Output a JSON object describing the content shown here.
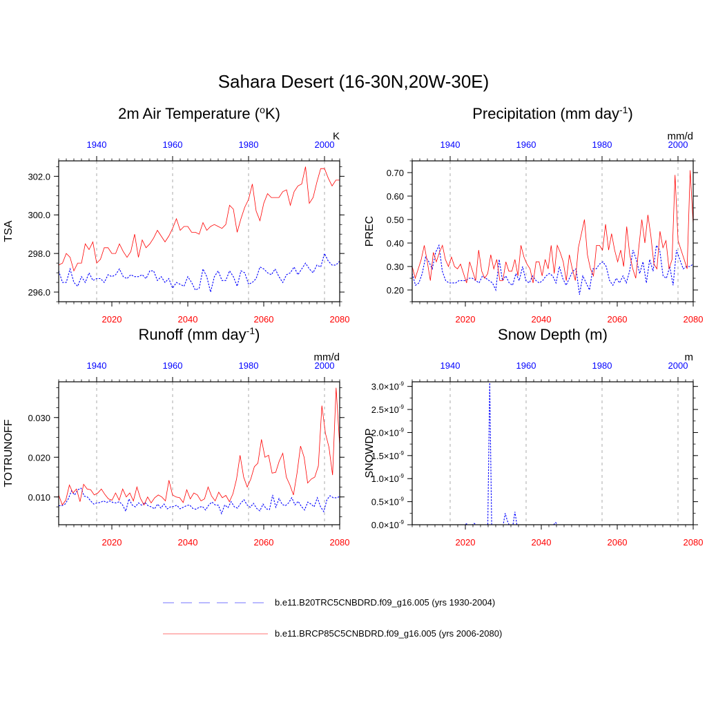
{
  "title": "Sahara Desert (16-30N,20W-30E)",
  "colors": {
    "hist": "#0000ff",
    "future": "#ff0000",
    "top_tick": "#0000ff",
    "bottom_tick": "#ff0000",
    "grid": "#aaaaaa"
  },
  "legend": {
    "hist_label": "b.e11.B20TRC5CNBDRD.f09_g16.005 (yrs 1930-2004)",
    "future_label": "b.e11.BRCP85C5CNBDRD.f09_g16.005 (yrs 2006-2080)"
  },
  "chart_data": [
    {
      "type": "line",
      "title_main": "2m Air Temperature (",
      "title_sup": "o",
      "title_end": "K)",
      "ylabel": "TSA",
      "units": "K",
      "ylim": [
        295.5,
        302.8
      ],
      "yticks": [
        296.0,
        298.0,
        300.0,
        302.0
      ],
      "ytick_labels": [
        "296.0",
        "298.0",
        "300.0",
        "302.0"
      ],
      "yminor": 0.5,
      "xlim_bottom": [
        2006,
        2080
      ],
      "xlim_top": [
        1930,
        2004
      ],
      "bottom_ticks": [
        2020,
        2040,
        2060,
        2080
      ],
      "top_ticks": [
        1940,
        1960,
        1980,
        2000
      ],
      "series": [
        {
          "name": "b.e11.B20TRC5CNBDRD.f09_g16.005 (yrs 1930-2004)",
          "style": "dashed",
          "color": "#0000ff",
          "values": [
            297.1,
            296.5,
            296.5,
            297.2,
            296.5,
            296.3,
            296.8,
            296.5,
            297.0,
            296.6,
            296.7,
            296.7,
            296.5,
            296.9,
            296.8,
            296.9,
            297.2,
            296.8,
            296.7,
            296.9,
            296.8,
            296.8,
            296.9,
            296.7,
            297.1,
            297.1,
            296.6,
            296.8,
            296.5,
            296.7,
            296.2,
            296.5,
            296.4,
            296.3,
            296.8,
            296.5,
            296.1,
            296.2,
            297.2,
            296.8,
            296.0,
            296.8,
            297.1,
            296.6,
            296.6,
            297.1,
            296.8,
            296.3,
            297.1,
            297.0,
            296.4,
            296.5,
            296.7,
            297.3,
            297.2,
            297.0,
            296.9,
            297.2,
            296.8,
            296.5,
            296.9,
            297.0,
            297.3,
            296.9,
            297.2,
            297.5,
            297.2,
            297.0,
            297.4,
            297.3,
            298.0,
            297.6,
            297.4,
            297.4,
            297.6
          ]
        },
        {
          "name": "b.e11.BRCP85C5CNBDRD.f09_g16.005 (yrs 2006-2080)",
          "style": "solid",
          "color": "#ff0000",
          "values": [
            297.4,
            297.5,
            298.0,
            297.8,
            297.1,
            297.5,
            297.5,
            298.5,
            298.2,
            298.6,
            297.5,
            297.7,
            298.3,
            298.3,
            298.0,
            298.0,
            298.5,
            298.1,
            297.8,
            298.1,
            299.0,
            297.8,
            298.7,
            298.3,
            298.5,
            298.8,
            299.2,
            298.9,
            298.6,
            298.9,
            299.3,
            299.8,
            299.2,
            299.4,
            299.4,
            299.1,
            299.1,
            299.0,
            299.6,
            299.2,
            299.4,
            299.5,
            299.4,
            299.3,
            299.5,
            300.5,
            300.3,
            299.1,
            299.8,
            300.4,
            300.8,
            301.6,
            300.2,
            299.7,
            300.6,
            301.1,
            300.9,
            300.9,
            300.9,
            301.2,
            301.3,
            300.5,
            301.2,
            301.5,
            301.6,
            302.5,
            300.6,
            300.9,
            301.7,
            302.4,
            302.4,
            301.9,
            301.5,
            301.8,
            301.8
          ]
        }
      ]
    },
    {
      "type": "line",
      "title_main": "Precipitation (mm day",
      "title_sup": "-1",
      "title_end": ")",
      "ylabel": "PREC",
      "units": "mm/d",
      "ylim": [
        0.15,
        0.75
      ],
      "yticks": [
        0.2,
        0.3,
        0.4,
        0.5,
        0.6,
        0.7
      ],
      "ytick_labels": [
        "0.20",
        "0.30",
        "0.40",
        "0.50",
        "0.60",
        "0.70"
      ],
      "yminor": 0.05,
      "xlim_bottom": [
        2006,
        2080
      ],
      "xlim_top": [
        1930,
        2004
      ],
      "bottom_ticks": [
        2020,
        2040,
        2060,
        2080
      ],
      "top_ticks": [
        1940,
        1960,
        1980,
        2000
      ],
      "series": [
        {
          "name": "b.e11.B20TRC5CNBDRD.f09_g16.005 (yrs 1930-2004)",
          "style": "dashed",
          "color": "#0000ff",
          "values": [
            0.27,
            0.22,
            0.23,
            0.27,
            0.34,
            0.32,
            0.29,
            0.36,
            0.39,
            0.28,
            0.24,
            0.23,
            0.23,
            0.23,
            0.24,
            0.24,
            0.24,
            0.25,
            0.25,
            0.24,
            0.23,
            0.26,
            0.25,
            0.24,
            0.23,
            0.2,
            0.33,
            0.24,
            0.26,
            0.23,
            0.22,
            0.27,
            0.24,
            0.3,
            0.24,
            0.23,
            0.26,
            0.24,
            0.23,
            0.24,
            0.26,
            0.27,
            0.26,
            0.23,
            0.3,
            0.25,
            0.22,
            0.25,
            0.28,
            0.29,
            0.18,
            0.26,
            0.23,
            0.2,
            0.29,
            0.29,
            0.31,
            0.32,
            0.3,
            0.24,
            0.22,
            0.25,
            0.23,
            0.26,
            0.23,
            0.28,
            0.37,
            0.33,
            0.27,
            0.32,
            0.23,
            0.33,
            0.28,
            0.39,
            0.37,
            0.26,
            0.25,
            0.3,
            0.22,
            0.37,
            0.33,
            0.29,
            0.3,
            0.3,
            0.31
          ]
        },
        {
          "name": "b.e11.BRCP85C5CNBDRD.f09_g16.005 (yrs 2006-2080)",
          "style": "solid",
          "color": "#ff0000",
          "values": [
            0.3,
            0.25,
            0.29,
            0.33,
            0.39,
            0.32,
            0.24,
            0.36,
            0.32,
            0.36,
            0.39,
            0.33,
            0.3,
            0.34,
            0.3,
            0.29,
            0.31,
            0.27,
            0.23,
            0.32,
            0.28,
            0.24,
            0.37,
            0.28,
            0.25,
            0.27,
            0.35,
            0.29,
            0.33,
            0.24,
            0.24,
            0.32,
            0.28,
            0.28,
            0.33,
            0.26,
            0.39,
            0.34,
            0.31,
            0.29,
            0.23,
            0.32,
            0.32,
            0.26,
            0.33,
            0.29,
            0.39,
            0.27,
            0.39,
            0.36,
            0.32,
            0.24,
            0.35,
            0.29,
            0.24,
            0.38,
            0.44,
            0.5,
            0.35,
            0.29,
            0.26,
            0.39,
            0.39,
            0.37,
            0.48,
            0.37,
            0.44,
            0.37,
            0.32,
            0.37,
            0.3,
            0.47,
            0.35,
            0.29,
            0.25,
            0.38,
            0.5,
            0.4,
            0.52,
            0.43,
            0.31,
            0.29,
            0.45,
            0.38,
            0.41,
            0.29,
            0.33,
            0.69,
            0.41,
            0.37,
            0.33,
            0.29,
            0.71,
            0.48
          ]
        }
      ]
    },
    {
      "type": "line",
      "title_main": "Runoff (mm day",
      "title_sup": "-1",
      "title_end": ")",
      "ylabel": "TOTRUNOFF",
      "units": "mm/d",
      "ylim": [
        0.003,
        0.039
      ],
      "yticks": [
        0.01,
        0.02,
        0.03
      ],
      "ytick_labels": [
        "0.010",
        "0.020",
        "0.030"
      ],
      "yminor": 0.0025,
      "xlim_bottom": [
        2006,
        2080
      ],
      "xlim_top": [
        1930,
        2004
      ],
      "bottom_ticks": [
        2020,
        2040,
        2060,
        2080
      ],
      "top_ticks": [
        1940,
        1960,
        1980,
        2000
      ],
      "series": [
        {
          "name": "b.e11.B20TRC5CNBDRD.f09_g16.005 (yrs 1930-2004)",
          "style": "dashed",
          "color": "#0000ff",
          "values": [
            0.0078,
            0.0078,
            0.0082,
            0.0095,
            0.0115,
            0.0105,
            0.0118,
            0.0122,
            0.0102,
            0.01,
            0.009,
            0.0082,
            0.0085,
            0.0086,
            0.009,
            0.0086,
            0.009,
            0.0086,
            0.0085,
            0.0088,
            0.008,
            0.0064,
            0.0095,
            0.008,
            0.0075,
            0.0085,
            0.0079,
            0.0086,
            0.0078,
            0.0075,
            0.007,
            0.0082,
            0.0072,
            0.0082,
            0.007,
            0.0075,
            0.0076,
            0.0079,
            0.007,
            0.0074,
            0.0078,
            0.008,
            0.0071,
            0.0069,
            0.0074,
            0.0076,
            0.0067,
            0.008,
            0.0087,
            0.008,
            0.0079,
            0.0058,
            0.008,
            0.0073,
            0.0088,
            0.0075,
            0.0072,
            0.0084,
            0.0093,
            0.008,
            0.0074,
            0.0084,
            0.0071,
            0.0065,
            0.0082,
            0.007,
            0.0068,
            0.0105,
            0.0074,
            0.0096,
            0.0081,
            0.0078,
            0.0085,
            0.0098,
            0.008,
            0.0089,
            0.0076,
            0.0067,
            0.0087,
            0.0082,
            0.0075,
            0.0098,
            0.0075,
            0.0063,
            0.0093,
            0.0103,
            0.0098,
            0.0098,
            0.0101
          ]
        },
        {
          "name": "b.e11.BRCP85C5CNBDRD.f09_g16.005 (yrs 2006-2080)",
          "style": "solid",
          "color": "#ff0000",
          "values": [
            0.0105,
            0.008,
            0.0092,
            0.013,
            0.011,
            0.012,
            0.0088,
            0.0132,
            0.012,
            0.0118,
            0.0105,
            0.011,
            0.012,
            0.0106,
            0.0095,
            0.0092,
            0.011,
            0.0092,
            0.012,
            0.01,
            0.011,
            0.009,
            0.0125,
            0.0096,
            0.008,
            0.01,
            0.0085,
            0.0098,
            0.0105,
            0.01,
            0.009,
            0.0142,
            0.0105,
            0.01,
            0.0098,
            0.0086,
            0.0118,
            0.0095,
            0.011,
            0.0105,
            0.009,
            0.0095,
            0.0125,
            0.0102,
            0.009,
            0.0112,
            0.0098,
            0.0104,
            0.0088,
            0.0108,
            0.0145,
            0.0205,
            0.015,
            0.0125,
            0.0145,
            0.0176,
            0.0185,
            0.0245,
            0.02,
            0.0205,
            0.016,
            0.0162,
            0.019,
            0.021,
            0.015,
            0.013,
            0.0105,
            0.016,
            0.0228,
            0.02,
            0.0135,
            0.0145,
            0.015,
            0.0178,
            0.033,
            0.026,
            0.0225,
            0.0155,
            0.0375,
            0.023
          ]
        }
      ]
    },
    {
      "type": "line",
      "title_main": "Snow Depth (m)",
      "title_sup": "",
      "title_end": "",
      "ylabel": "SNOWDP",
      "units": "m",
      "ylim": [
        0.0,
        3.1e-09
      ],
      "yticks": [
        0.0,
        5e-10,
        1e-09,
        1.5e-09,
        2e-09,
        2.5e-09,
        3e-09
      ],
      "ytick_labels": [
        "0.0",
        "0.5",
        "1.0",
        "1.5",
        "2.0",
        "2.5",
        "3.0"
      ],
      "ytick_suffix": "×10",
      "ytick_exp": "-9",
      "yminor": 2.5e-10,
      "xlim_bottom": [
        2006,
        2080
      ],
      "xlim_top": [
        1930,
        2004
      ],
      "bottom_ticks": [
        2020,
        2040,
        2060,
        2080
      ],
      "top_ticks": [
        1940,
        1960,
        1980,
        2000
      ],
      "series": [
        {
          "name": "b.e11.B20TRC5CNBDRD.f09_g16.005 (yrs 1930-2004)",
          "style": "dashed",
          "color": "#0000ff",
          "values": [
            0,
            0,
            0,
            0,
            0,
            0,
            0,
            0,
            0,
            0,
            0,
            0,
            0,
            0,
            0,
            0,
            0,
            0,
            0,
            0,
            0,
            0,
            0,
            0,
            0,
            0,
            0,
            0,
            2e-11,
            0,
            0,
            0,
            3e-11,
            0,
            0,
            0,
            0,
            0,
            0,
            0,
            3.08e-09,
            0,
            0,
            0,
            0,
            0,
            0,
            0,
            2.5e-10,
            1e-10,
            0,
            0,
            0,
            2.8e-10,
            0,
            0,
            0,
            0,
            0,
            0,
            0,
            0,
            0,
            0,
            0,
            0,
            0,
            0,
            0,
            0,
            0,
            0,
            0,
            0,
            5e-11,
            0,
            0,
            0,
            0,
            0,
            0,
            0,
            0,
            0,
            0,
            0,
            0,
            0,
            0,
            0,
            0,
            0,
            0,
            0,
            0,
            0,
            0,
            0,
            0,
            0,
            0,
            0,
            0,
            0,
            0,
            0,
            0,
            0,
            0,
            0,
            0,
            0,
            0,
            0,
            0,
            0,
            0,
            0,
            0,
            0,
            0,
            0,
            0,
            0,
            0,
            0,
            0,
            0,
            0,
            0,
            0,
            0,
            0,
            0,
            0,
            0,
            0,
            0,
            0,
            0,
            0,
            0,
            0,
            0,
            0,
            0
          ]
        },
        {
          "name": "b.e11.BRCP85C5CNBDRD.f09_g16.005 (yrs 2006-2080)",
          "style": "solid",
          "color": "#ff0000",
          "values": [
            0,
            0,
            0,
            0,
            0,
            0,
            0,
            0,
            0,
            0,
            0,
            0,
            0,
            0,
            0,
            0,
            0,
            0,
            0,
            0,
            0,
            0,
            0,
            0,
            0,
            0,
            0,
            0,
            0,
            0,
            0,
            0,
            0,
            0,
            0,
            0,
            0,
            0,
            0,
            0,
            0,
            0,
            0,
            0,
            0,
            0,
            0,
            0,
            0,
            0,
            0,
            0,
            0,
            0,
            0,
            0,
            0,
            0,
            0,
            0,
            0,
            0,
            0,
            0,
            0,
            0,
            0,
            0,
            0,
            0,
            0,
            0,
            0,
            0,
            0
          ]
        }
      ]
    }
  ]
}
